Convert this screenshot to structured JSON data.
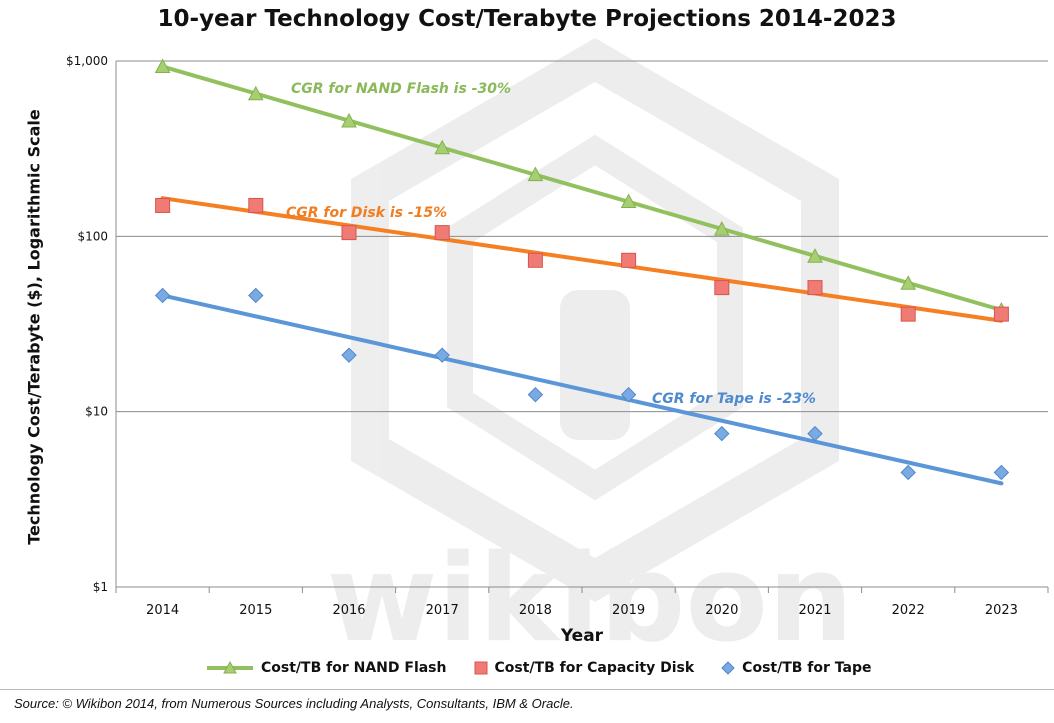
{
  "watermark": "wikibon",
  "source_note": "Source: © Wikibon 2014, from Numerous Sources including Analysts, Consultants, IBM & Oracle.",
  "chart_data": {
    "type": "scatter",
    "title": "10-year Technology Cost/Terabyte Projections 2014-2023",
    "xlabel": "Year",
    "ylabel": "Technology Cost/Terabyte ($), Logarithmic Scale",
    "y_scale": "log",
    "ylim": [
      1,
      1000
    ],
    "y_ticks": [
      1,
      10,
      100,
      1000
    ],
    "y_tick_labels": [
      "$1",
      "$10",
      "$100",
      "$1,000"
    ],
    "categories": [
      "2014",
      "2015",
      "2016",
      "2017",
      "2018",
      "2019",
      "2020",
      "2021",
      "2022",
      "2023"
    ],
    "grid": "horizontal",
    "legend_position": "bottom",
    "series": [
      {
        "name": "Cost/TB for NAND Flash",
        "marker": "triangle",
        "color": "#92c05e",
        "values": [
          930,
          650,
          455,
          320,
          225,
          158,
          110,
          77,
          54,
          38
        ],
        "trendline": {
          "start": 930,
          "end": 38
        },
        "annotation": "CGR for NAND Flash is -30%"
      },
      {
        "name": "Cost/TB for Capacity Disk",
        "marker": "square",
        "color": "#e8615b",
        "values": [
          150,
          150,
          105,
          105,
          73,
          73,
          51,
          51,
          36,
          36
        ],
        "trendline": {
          "start": 165,
          "end": 33,
          "color": "#f58024"
        },
        "annotation": "CGR for Disk is -15%"
      },
      {
        "name": "Cost/TB for Tape",
        "marker": "diamond",
        "color": "#5c94d6",
        "values": [
          46,
          46,
          21,
          21,
          12.5,
          12.5,
          7.5,
          7.5,
          4.5,
          4.5
        ],
        "trendline": {
          "start": 46,
          "end": 3.9,
          "color": "#5b96d8"
        },
        "annotation": "CGR for Tape is -23%"
      }
    ]
  }
}
